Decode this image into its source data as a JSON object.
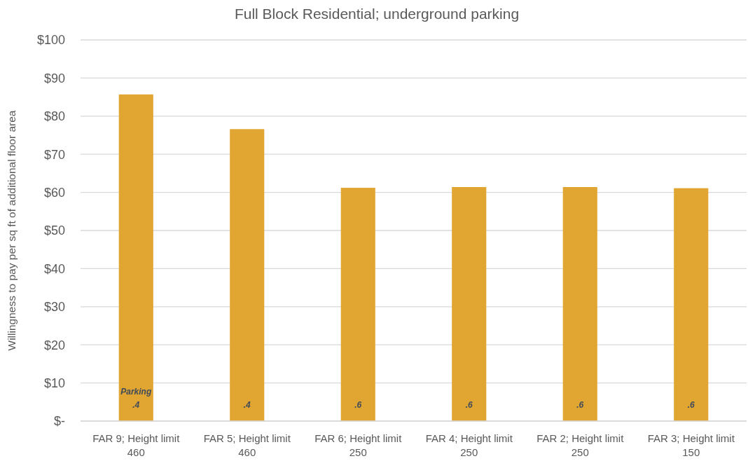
{
  "chart_data": {
    "type": "bar",
    "title": "Full Block Residential; underground parking",
    "ylabel": "Willingness to pay per sq ft of additional floor area",
    "categories": [
      "FAR 9; Height limit 460",
      "FAR 5; Height limit 460",
      "FAR 6; Height limit 250",
      "FAR 4; Height limit 250",
      "FAR 2; Height limit 250",
      "FAR 3; Height limit 150"
    ],
    "values": [
      85.7,
      76.6,
      61.2,
      61.4,
      61.4,
      61.1
    ],
    "color": "#e1a531",
    "ylim": [
      0,
      100
    ],
    "yticks": [
      {
        "value": 0,
        "label": "$-"
      },
      {
        "value": 10,
        "label": "$10"
      },
      {
        "value": 20,
        "label": "$20"
      },
      {
        "value": 30,
        "label": "$30"
      },
      {
        "value": 40,
        "label": "$40"
      },
      {
        "value": 50,
        "label": "$50"
      },
      {
        "value": 60,
        "label": "$60"
      },
      {
        "value": 70,
        "label": "$70"
      },
      {
        "value": 80,
        "label": "$80"
      },
      {
        "value": 90,
        "label": "$90"
      },
      {
        "value": 100,
        "label": "$100"
      }
    ],
    "grid": "y",
    "annotations": [
      "Parking\n.4",
      ".4",
      ".6",
      ".6",
      ".6",
      ".6"
    ]
  }
}
